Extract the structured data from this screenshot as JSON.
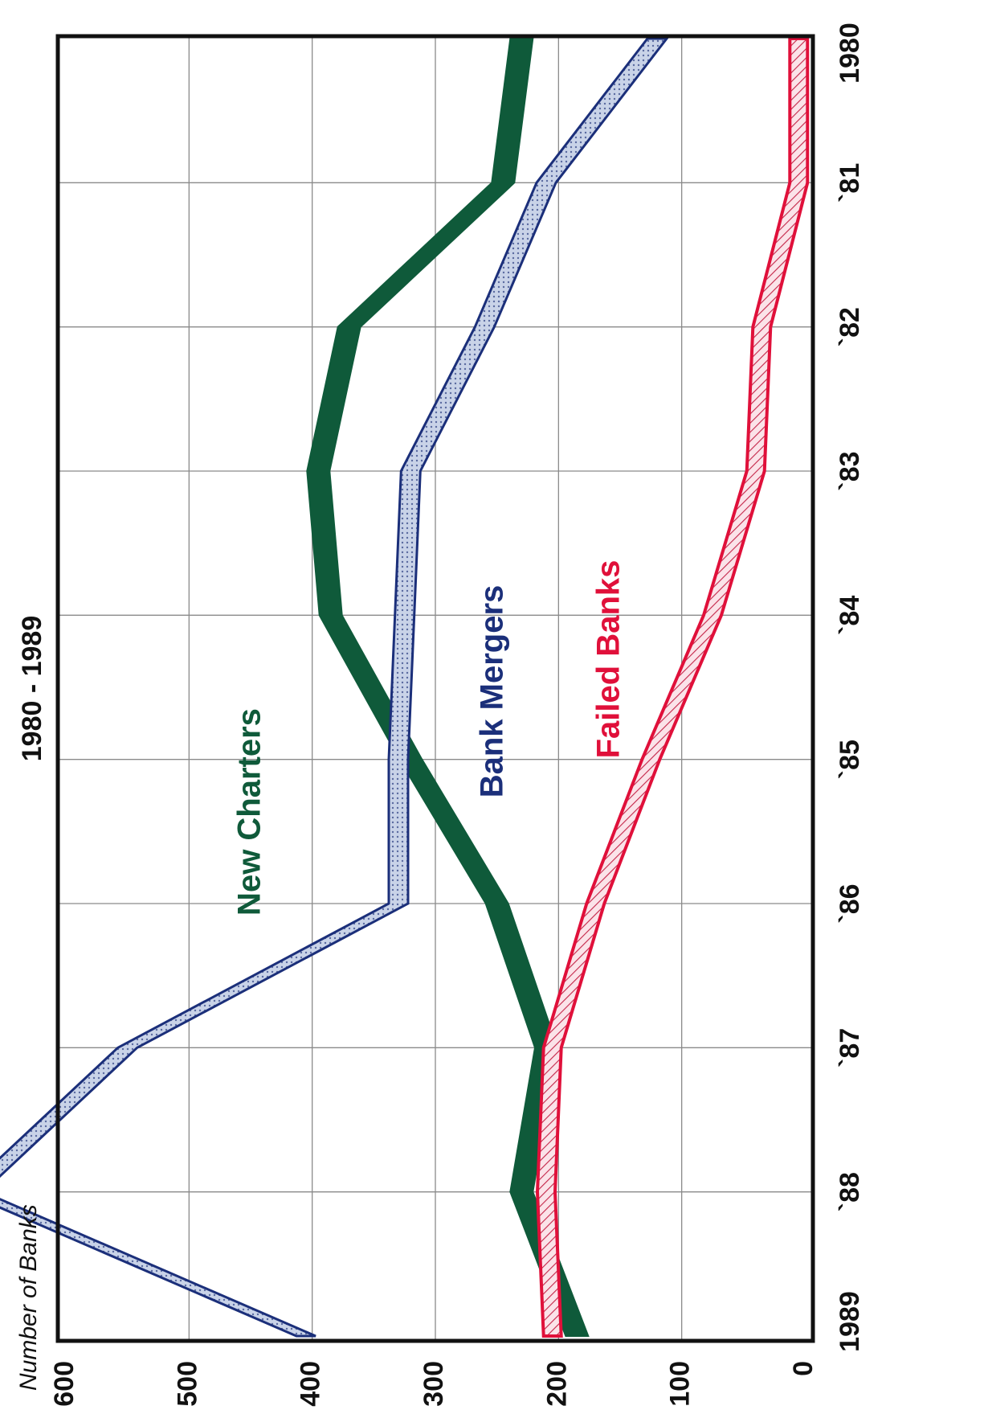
{
  "colors": {
    "new_charters": "#0f5a3a",
    "bank_mergers_edge": "#1b2f7a",
    "bank_mergers_fill": "#c9d3e8",
    "failed_banks_edge": "#e0103a",
    "failed_banks_fill": "#f6c9d3",
    "grid": "#8a8a8a",
    "frame": "#111111"
  },
  "chart_data": {
    "type": "line",
    "orientation": "rotated 90 degrees clockwise (years run top to bottom, values right to left)",
    "title": "",
    "subtitle": "1980 - 1989",
    "xlabel": "",
    "ylabel": "Number of Banks",
    "categories": [
      "1980",
      "`81",
      "`82",
      "`83",
      "`84",
      "`85",
      "`86",
      "`87",
      "`88",
      "1989"
    ],
    "ylim": [
      0,
      600
    ],
    "yticks": [
      "0",
      "100",
      "200",
      "300",
      "400",
      "500",
      "600"
    ],
    "grid": true,
    "series": [
      {
        "name": "New Charters",
        "values": [
          230,
          245,
          370,
          395,
          385,
          320,
          250,
          210,
          230,
          185
        ]
      },
      {
        "name": "Bank Mergers",
        "values": [
          120,
          210,
          260,
          320,
          325,
          330,
          330,
          550,
          675,
          405
        ]
      },
      {
        "name": "Failed Banks",
        "values": [
          5,
          5,
          35,
          40,
          75,
          125,
          170,
          205,
          210,
          205
        ]
      }
    ]
  }
}
